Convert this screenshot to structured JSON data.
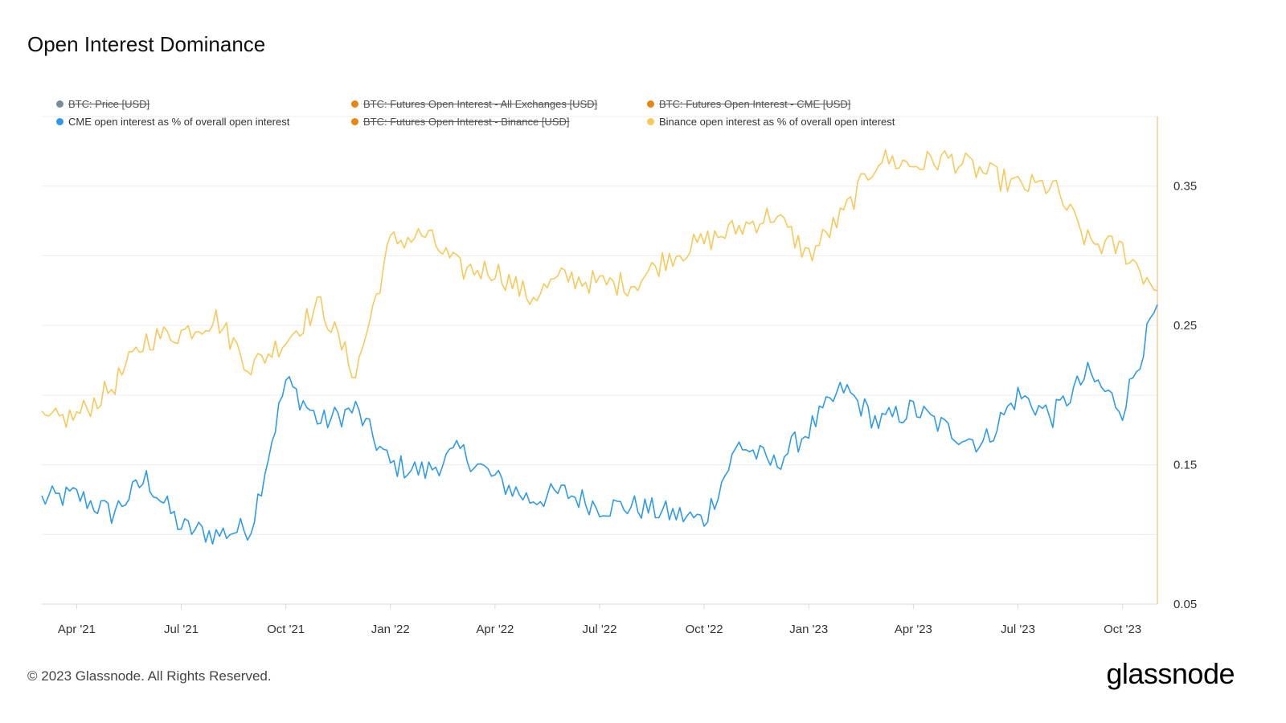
{
  "title": "Open Interest Dominance",
  "footer": "© 2023 Glassnode. All Rights Reserved.",
  "brand": "glassnode",
  "legend": [
    {
      "label": "BTC: Price [USD]",
      "color": "#7b8c99",
      "disabled": true
    },
    {
      "label": "BTC: Futures Open Interest - All Exchanges [USD]",
      "color": "#e8870f",
      "disabled": true
    },
    {
      "label": "BTC: Futures Open Interest - CME [USD]",
      "color": "#e8870f",
      "disabled": true
    },
    {
      "label": "CME open interest as % of overall open interest",
      "color": "#2f9be8",
      "disabled": false
    },
    {
      "label": "BTC: Futures Open Interest - Binance [USD]",
      "color": "#e8870f",
      "disabled": true
    },
    {
      "label": "Binance open interest as % of overall open interest",
      "color": "#f7c95a",
      "disabled": false
    }
  ],
  "chart_data": {
    "type": "line",
    "title": "Open Interest Dominance",
    "x": [
      "2021-03",
      "2021-04",
      "2021-05",
      "2021-06",
      "2021-07",
      "2021-08",
      "2021-09",
      "2021-10",
      "2021-11",
      "2021-12",
      "2022-01",
      "2022-02",
      "2022-03",
      "2022-04",
      "2022-05",
      "2022-06",
      "2022-07",
      "2022-08",
      "2022-09",
      "2022-10",
      "2022-11",
      "2022-12",
      "2023-01",
      "2023-02",
      "2023-03",
      "2023-04",
      "2023-05",
      "2023-06",
      "2023-07",
      "2023-08",
      "2023-09",
      "2023-10",
      "2023-11"
    ],
    "x_tick_labels": [
      "Apr '21",
      "Jul '21",
      "Oct '21",
      "Jan '22",
      "Apr '22",
      "Jul '22",
      "Oct '22",
      "Jan '23",
      "Apr '23",
      "Jul '23",
      "Oct '23"
    ],
    "series": [
      {
        "name": "CME open interest as % of overall open interest",
        "color": "#2f9be8",
        "values": [
          0.125,
          0.128,
          0.115,
          0.14,
          0.105,
          0.1,
          0.105,
          0.21,
          0.18,
          0.19,
          0.15,
          0.145,
          0.16,
          0.14,
          0.125,
          0.13,
          0.12,
          0.12,
          0.115,
          0.11,
          0.165,
          0.15,
          0.175,
          0.205,
          0.18,
          0.19,
          0.175,
          0.165,
          0.2,
          0.185,
          0.215,
          0.19,
          0.265
        ]
      },
      {
        "name": "Binance open interest as % of overall open interest",
        "color": "#f7c95a",
        "values": [
          0.18,
          0.185,
          0.205,
          0.24,
          0.245,
          0.255,
          0.22,
          0.24,
          0.265,
          0.215,
          0.31,
          0.315,
          0.29,
          0.29,
          0.27,
          0.285,
          0.28,
          0.28,
          0.3,
          0.31,
          0.32,
          0.33,
          0.3,
          0.33,
          0.37,
          0.365,
          0.37,
          0.36,
          0.35,
          0.35,
          0.31,
          0.305,
          0.275
        ]
      }
    ],
    "y_ticks": [
      0.05,
      0.15,
      0.25,
      0.35
    ],
    "y_tick_labels": [
      "0.05",
      "0.15",
      "0.25",
      "0.35"
    ],
    "ylim": [
      0.05,
      0.4
    ],
    "grid": true,
    "legend_position": "top"
  }
}
